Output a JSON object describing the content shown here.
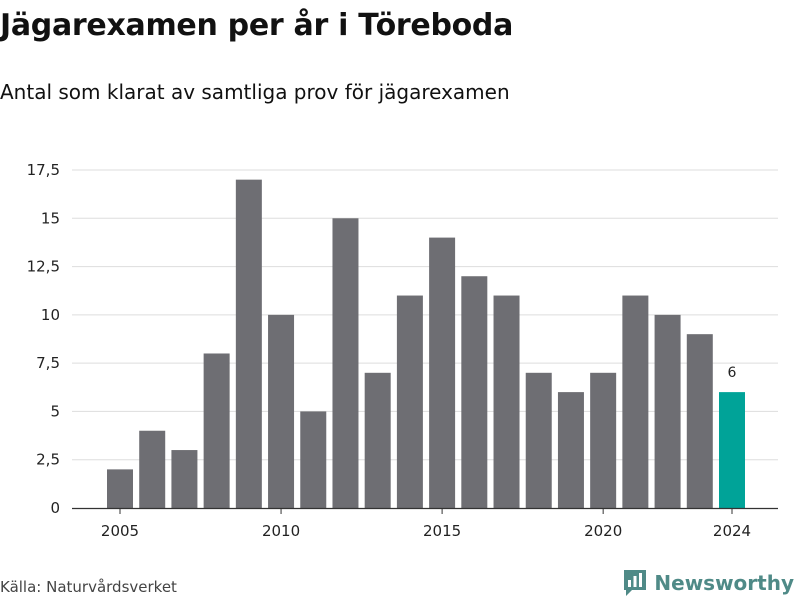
{
  "header": {
    "title": "Jägarexamen per år i Töreboda",
    "subtitle": "Antal som klarat av samtliga prov för jägarexamen"
  },
  "footer": {
    "source": "Källa: Naturvårdsverket",
    "brand": "Newsworthy",
    "brand_icon": "bar-chart-logo-icon"
  },
  "colors": {
    "bar": "#6e6e73",
    "highlight": "#00a398",
    "grid": "#dddddd",
    "axis": "#333333",
    "brand": "#4f8a87"
  },
  "chart_data": {
    "type": "bar",
    "categories": [
      2005,
      2006,
      2007,
      2008,
      2009,
      2010,
      2011,
      2012,
      2013,
      2014,
      2015,
      2016,
      2017,
      2018,
      2019,
      2020,
      2021,
      2022,
      2023,
      2024
    ],
    "values": [
      2,
      4,
      3,
      8,
      17,
      10,
      5,
      15,
      7,
      11,
      14,
      12,
      11,
      7,
      6,
      7,
      11,
      10,
      9,
      6
    ],
    "highlight_category": 2024,
    "data_labels": [
      {
        "category": 2024,
        "text": "6"
      }
    ],
    "title": "Jägarexamen per år i Töreboda",
    "subtitle": "Antal som klarat av samtliga prov för jägarexamen",
    "xlabel": "",
    "ylabel": "",
    "ylim": [
      0,
      17.5
    ],
    "y_ticks": [
      0,
      2.5,
      5,
      7.5,
      10,
      12.5,
      15,
      17.5
    ],
    "y_tick_labels": [
      "0",
      "2,5",
      "5",
      "7,5",
      "10",
      "12,5",
      "15",
      "17,5"
    ],
    "x_ticks": [
      2005,
      2010,
      2015,
      2020,
      2024
    ],
    "x_tick_labels": [
      "2005",
      "2010",
      "2015",
      "2020",
      "2024"
    ],
    "grid": true,
    "legend": "none"
  }
}
